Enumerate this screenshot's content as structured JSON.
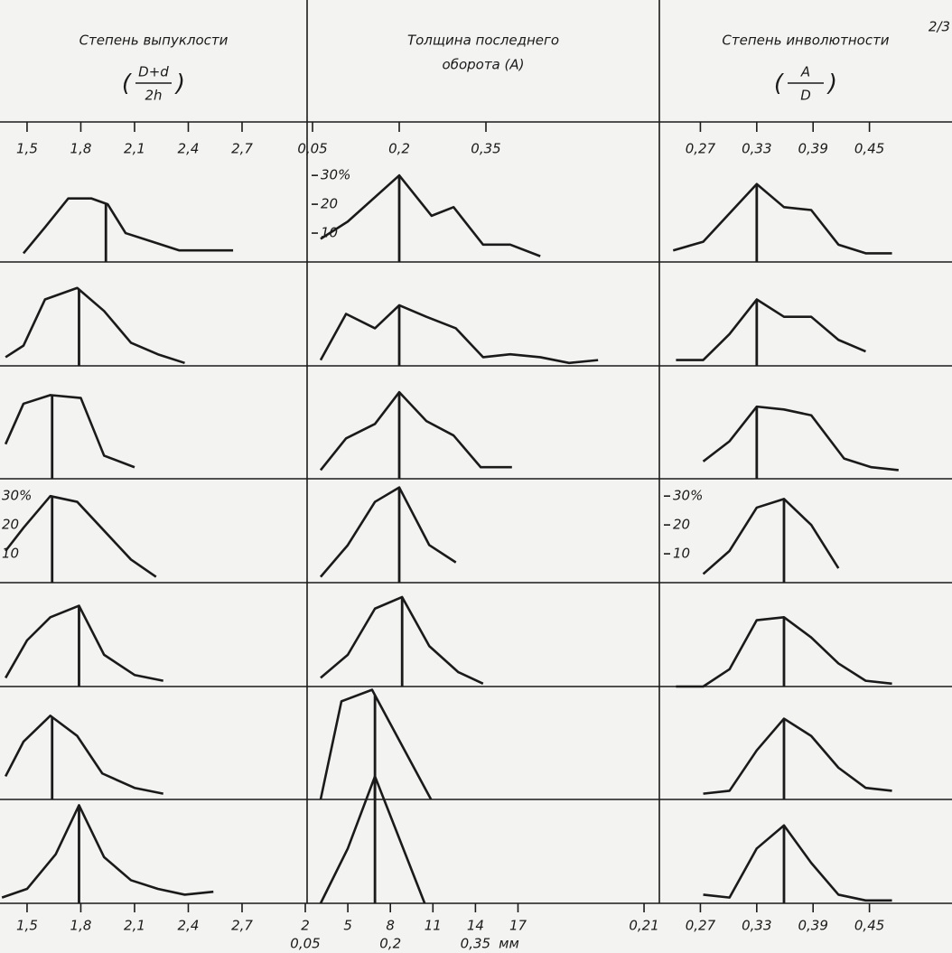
{
  "corner_note": "2/3",
  "chart_data": [
    {
      "type": "line",
      "title": "Степень выпуклости",
      "formula": {
        "numerator": "D+d",
        "denominator": "2h"
      },
      "xlim": [
        1.349,
        3.063
      ],
      "ylim": [
        0,
        36
      ],
      "xticks": [
        {
          "value": 1.5,
          "label": "1,5"
        },
        {
          "value": 1.8,
          "label": "1,8"
        },
        {
          "value": 2.1,
          "label": "2,1"
        },
        {
          "value": 2.4,
          "label": "2,4"
        },
        {
          "value": 2.7,
          "label": "2,7"
        }
      ],
      "yticks": [
        {
          "value": 30,
          "label": "30%"
        },
        20,
        10
      ],
      "series": [
        {
          "color": "#1a1a1a",
          "x": [
            1.48,
            1.6,
            1.73,
            1.86,
            1.95,
            2.05,
            2.2,
            2.35,
            2.5,
            2.65
          ],
          "values": [
            3,
            12,
            22,
            22,
            20,
            10,
            7,
            4,
            4,
            4
          ]
        },
        {
          "color": "#1a1a1a",
          "x": [
            1.38,
            1.48,
            1.6,
            1.78,
            1.93,
            2.08,
            2.23,
            2.38
          ],
          "values": [
            3,
            7,
            23,
            27,
            19,
            8,
            4,
            1
          ]
        },
        {
          "color": "#1a1a1a",
          "x": [
            1.38,
            1.48,
            1.63,
            1.8,
            1.93,
            2.1
          ],
          "values": [
            12,
            26,
            29,
            28,
            8,
            4
          ]
        },
        {
          "color": "#1a1a1a",
          "x": [
            1.38,
            1.48,
            1.63,
            1.78,
            2.08,
            2.22
          ],
          "values": [
            11,
            19,
            30,
            28,
            8,
            2
          ]
        },
        {
          "color": "#1a1a1a",
          "x": [
            1.38,
            1.5,
            1.63,
            1.79,
            1.93,
            2.1,
            2.26
          ],
          "values": [
            3,
            16,
            24,
            28,
            11,
            4,
            2
          ]
        },
        {
          "color": "#1a1a1a",
          "x": [
            1.38,
            1.48,
            1.63,
            1.78,
            1.92,
            2.1,
            2.26
          ],
          "values": [
            8,
            20,
            29,
            22,
            9,
            4,
            2
          ]
        },
        {
          "color": "#1a1a1a",
          "x": [
            1.36,
            1.5,
            1.66,
            1.79,
            1.93,
            2.08,
            2.23,
            2.38,
            2.54
          ],
          "values": [
            2,
            5,
            17,
            34,
            16,
            8,
            5,
            3,
            4
          ]
        }
      ],
      "means": [
        1.94,
        1.79,
        1.64,
        1.64,
        1.79,
        1.64,
        1.79
      ]
    },
    {
      "type": "line",
      "title": [
        "Толщина последнего",
        "оборота (A)"
      ],
      "xlim": [
        0.0406,
        0.65
      ],
      "ylim": [
        0,
        36
      ],
      "xticks": [
        {
          "value": 0.05,
          "label": "0,05"
        },
        {
          "value": 0.2,
          "label": "0,2"
        },
        {
          "value": 0.35,
          "label": "0,35"
        }
      ],
      "x2lim": [
        2.127,
        26.97
      ],
      "x2ticks": [
        2,
        5,
        8,
        11,
        14,
        17
      ],
      "x2_sublabels": [
        "0,05",
        "0,2",
        "0,35"
      ],
      "x2_unit": "мм",
      "yticks": [
        {
          "value": 30,
          "label": "30%"
        },
        20,
        10
      ],
      "series": [
        {
          "color": "#1a1a1a",
          "x": [
            0.064,
            0.111,
            0.2,
            0.256,
            0.294,
            0.345,
            0.392,
            0.444
          ],
          "values": [
            8,
            14,
            30,
            16,
            19,
            6,
            6,
            2
          ]
        },
        {
          "color": "#1a1a1a",
          "x": [
            0.064,
            0.108,
            0.158,
            0.2,
            0.247,
            0.298,
            0.345,
            0.392,
            0.444,
            0.494,
            0.544
          ],
          "values": [
            2,
            18,
            13,
            21,
            17,
            13,
            3,
            4,
            3,
            1,
            2
          ]
        },
        {
          "color": "#1a1a1a",
          "x": [
            0.064,
            0.108,
            0.158,
            0.2,
            0.247,
            0.294,
            0.341,
            0.395
          ],
          "values": [
            3,
            14,
            19,
            30,
            20,
            15,
            4,
            4
          ]
        },
        {
          "color": "#1a1a1a",
          "x": [
            0.064,
            0.111,
            0.158,
            0.2,
            0.252,
            0.298
          ],
          "values": [
            2,
            13,
            28,
            33,
            13,
            7
          ]
        },
        {
          "color": "#1a1a1a",
          "x": [
            0.064,
            0.111,
            0.158,
            0.205,
            0.252,
            0.302,
            0.345
          ],
          "values": [
            3,
            11,
            27,
            31,
            14,
            5,
            1
          ]
        },
        {
          "color": "#1a1a1a",
          "x": [
            0.064,
            0.1,
            0.153,
            0.255
          ],
          "values": [
            0,
            34,
            38,
            0
          ]
        },
        {
          "color": "#1a1a1a",
          "x": [
            0.064,
            0.111,
            0.158,
            0.244
          ],
          "values": [
            0,
            19,
            44,
            0
          ]
        }
      ],
      "means": [
        0.2,
        0.2,
        0.2,
        0.2,
        0.205,
        0.158,
        0.158
      ]
    },
    {
      "type": "line",
      "title": "Степень инволютности",
      "formula": {
        "numerator": "A",
        "denominator": "D"
      },
      "xlim": [
        0.2263,
        0.5379
      ],
      "ylim": [
        0,
        36
      ],
      "xticks": [
        {
          "value": 0.27,
          "label": "0,27"
        },
        {
          "value": 0.33,
          "label": "0,33"
        },
        {
          "value": 0.39,
          "label": "0,39"
        },
        {
          "value": 0.45,
          "label": "0,45"
        }
      ],
      "bottom_xticks": [
        {
          "value": 0.21,
          "label": "0,21"
        },
        {
          "value": 0.27,
          "label": "0,27"
        },
        {
          "value": 0.33,
          "label": "0,33"
        },
        {
          "value": 0.39,
          "label": "0,39"
        },
        {
          "value": 0.45,
          "label": "0,45"
        }
      ],
      "yticks": [
        {
          "value": 30,
          "label": "30%"
        },
        20,
        10
      ],
      "series": [
        {
          "color": "#1a1a1a",
          "x": [
            0.241,
            0.273,
            0.33,
            0.359,
            0.388,
            0.417,
            0.446,
            0.474
          ],
          "values": [
            4,
            7,
            27,
            19,
            18,
            6,
            3,
            3
          ]
        },
        {
          "color": "#1a1a1a",
          "x": [
            0.244,
            0.273,
            0.301,
            0.33,
            0.359,
            0.388,
            0.417,
            0.446
          ],
          "values": [
            2,
            2,
            11,
            23,
            17,
            17,
            9,
            5
          ]
        },
        {
          "color": "#1a1a1a",
          "x": [
            0.273,
            0.301,
            0.33,
            0.359,
            0.388,
            0.423,
            0.452,
            0.481
          ],
          "values": [
            6,
            13,
            25,
            24,
            22,
            7,
            4,
            3
          ]
        },
        {
          "color": "#1a1a1a",
          "x": [
            0.273,
            0.301,
            0.33,
            0.359,
            0.388,
            0.417
          ],
          "values": [
            3,
            11,
            26,
            29,
            20,
            5
          ]
        },
        {
          "color": "#1a1a1a",
          "x": [
            0.244,
            0.273,
            0.301,
            0.33,
            0.359,
            0.388,
            0.417,
            0.446,
            0.474
          ],
          "values": [
            0,
            0,
            6,
            23,
            24,
            17,
            8,
            2,
            1
          ]
        },
        {
          "color": "#1a1a1a",
          "x": [
            0.273,
            0.301,
            0.33,
            0.359,
            0.388,
            0.417,
            0.446,
            0.474
          ],
          "values": [
            2,
            3,
            17,
            28,
            22,
            11,
            4,
            3
          ]
        },
        {
          "color": "#1a1a1a",
          "x": [
            0.273,
            0.301,
            0.33,
            0.359,
            0.388,
            0.417,
            0.446,
            0.474
          ],
          "values": [
            3,
            2,
            19,
            27,
            14,
            3,
            1,
            1
          ]
        }
      ],
      "means": [
        0.33,
        0.33,
        0.33,
        0.359,
        0.359,
        0.359,
        0.359
      ]
    }
  ]
}
